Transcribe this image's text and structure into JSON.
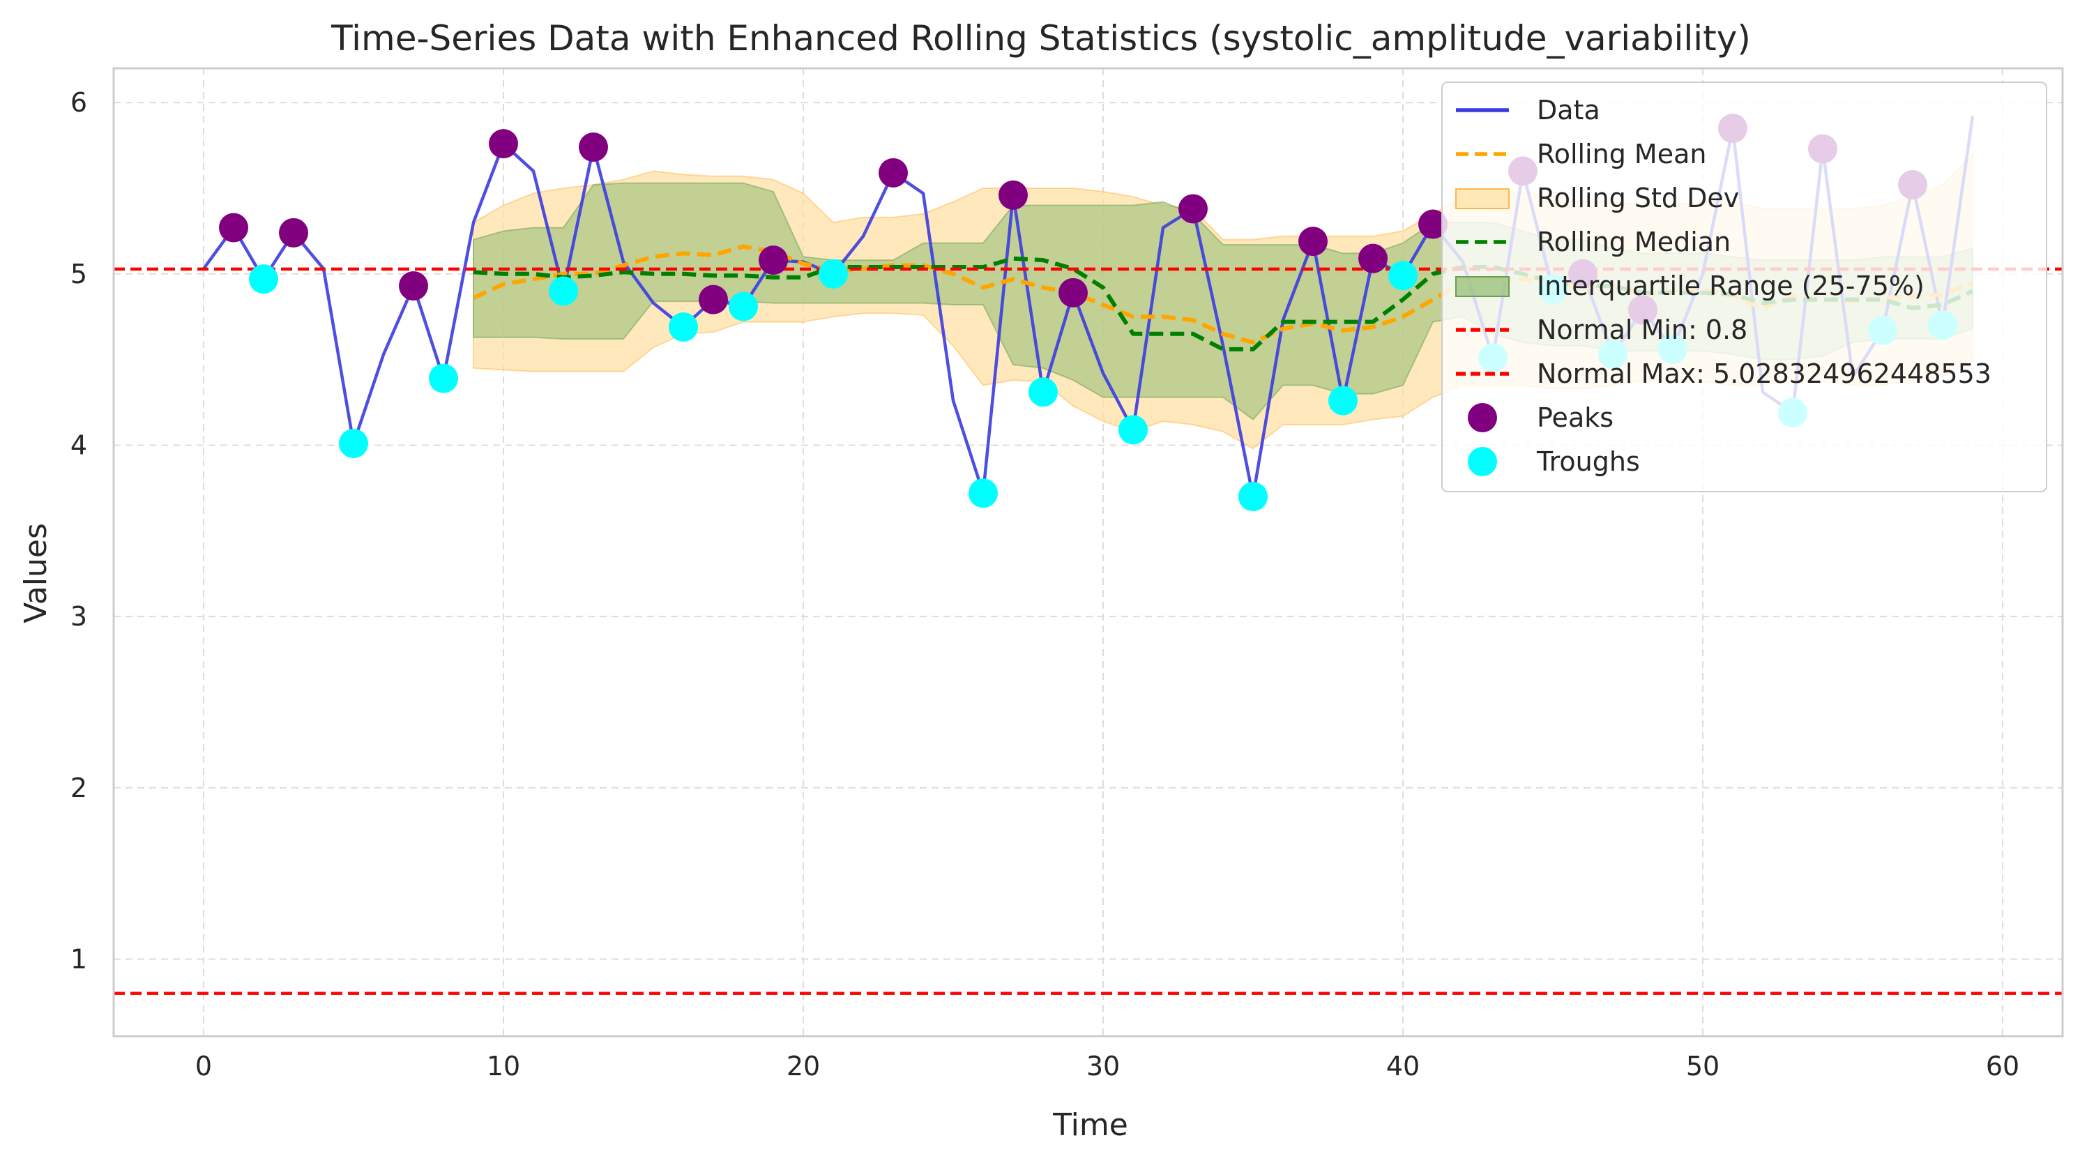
{
  "chart_data": {
    "type": "line",
    "title": "Time-Series Data with Enhanced Rolling Statistics (systolic_amplitude_variability)",
    "xlabel": "Time",
    "ylabel": "Values",
    "xlim": [
      -3,
      62
    ],
    "ylim": [
      0.55,
      6.2
    ],
    "x_ticks": [
      0,
      10,
      20,
      30,
      40,
      50,
      60
    ],
    "y_ticks": [
      1,
      2,
      3,
      4,
      5,
      6
    ],
    "grid": true,
    "legend_position": "top-right",
    "colors": {
      "data": "#3b3be0",
      "rolling_mean": "#ffa500",
      "rolling_std": "#ffdfa0",
      "rolling_median": "#008000",
      "iqr": "#8fbc72",
      "normal": "#ff0000",
      "peaks": "#800080",
      "troughs": "#00ffff"
    },
    "x": [
      0,
      1,
      2,
      3,
      4,
      5,
      6,
      7,
      8,
      9,
      10,
      11,
      12,
      13,
      14,
      15,
      16,
      17,
      18,
      19,
      20,
      21,
      22,
      23,
      24,
      25,
      26,
      27,
      28,
      29,
      30,
      31,
      32,
      33,
      34,
      35,
      36,
      37,
      38,
      39,
      40,
      41,
      42,
      43,
      44,
      45,
      46,
      47,
      48,
      49,
      50,
      51,
      52,
      53,
      54,
      55,
      56,
      57,
      58,
      59
    ],
    "series": [
      {
        "name": "Data",
        "values": [
          5.03,
          5.27,
          4.97,
          5.24,
          5.03,
          4.01,
          4.53,
          4.93,
          4.39,
          5.3,
          5.76,
          5.6,
          4.9,
          5.74,
          5.07,
          4.83,
          4.69,
          4.85,
          4.81,
          5.08,
          5.07,
          5.0,
          5.22,
          5.59,
          5.47,
          4.26,
          3.72,
          5.46,
          4.31,
          4.89,
          4.42,
          4.09,
          5.27,
          5.38,
          4.58,
          3.7,
          4.73,
          5.19,
          4.26,
          5.09,
          4.99,
          5.29,
          5.07,
          4.51,
          5.6,
          4.91,
          5.0,
          4.53,
          4.79,
          4.56,
          5.0,
          5.85,
          4.31,
          4.19,
          5.73,
          4.4,
          4.67,
          5.52,
          4.7,
          5.92
        ]
      },
      {
        "name": "Rolling Mean",
        "x": [
          9,
          10,
          11,
          12,
          13,
          14,
          15,
          16,
          17,
          18,
          19,
          20,
          21,
          22,
          23,
          24,
          25,
          26,
          27,
          28,
          29,
          30,
          31,
          32,
          33,
          34,
          35,
          36,
          37,
          38,
          39,
          40,
          41,
          42,
          43,
          44,
          45,
          46,
          47,
          48,
          49,
          50,
          51,
          52,
          53,
          54,
          55,
          56,
          57,
          58,
          59
        ],
        "values": [
          4.86,
          4.94,
          4.97,
          5.0,
          5.0,
          5.05,
          5.1,
          5.12,
          5.11,
          5.16,
          5.13,
          5.06,
          5.02,
          5.03,
          5.05,
          5.05,
          5.0,
          4.92,
          4.97,
          4.92,
          4.89,
          4.82,
          4.75,
          4.75,
          4.73,
          4.65,
          4.6,
          4.68,
          4.71,
          4.67,
          4.69,
          4.75,
          4.85,
          4.95,
          4.96,
          4.97,
          4.96,
          4.92,
          4.93,
          4.88,
          4.9,
          4.91,
          4.87,
          4.8,
          4.87,
          4.85,
          4.84,
          4.86,
          4.87,
          4.88,
          4.95
        ]
      },
      {
        "name": "Rolling Median",
        "x": [
          9,
          10,
          11,
          12,
          13,
          14,
          15,
          16,
          17,
          18,
          19,
          20,
          21,
          22,
          23,
          24,
          25,
          26,
          27,
          28,
          29,
          30,
          31,
          32,
          33,
          34,
          35,
          36,
          37,
          38,
          39,
          40,
          41,
          42,
          43,
          44,
          45,
          46,
          47,
          48,
          49,
          50,
          51,
          52,
          53,
          54,
          55,
          56,
          57,
          58,
          59
        ],
        "values": [
          5.01,
          5.0,
          5.0,
          4.98,
          4.99,
          5.01,
          5.0,
          5.0,
          4.99,
          4.99,
          4.98,
          4.98,
          5.04,
          5.04,
          5.04,
          5.04,
          5.04,
          5.04,
          5.09,
          5.08,
          5.03,
          4.92,
          4.65,
          4.65,
          4.65,
          4.56,
          4.56,
          4.72,
          4.72,
          4.72,
          4.72,
          4.85,
          5.0,
          5.04,
          5.04,
          5.0,
          4.95,
          4.93,
          4.93,
          4.89,
          4.89,
          4.89,
          4.88,
          4.83,
          4.85,
          4.85,
          4.85,
          4.85,
          4.8,
          4.82,
          4.9
        ]
      }
    ],
    "bands": [
      {
        "name": "Rolling Std Dev",
        "x": [
          9,
          10,
          11,
          12,
          13,
          14,
          15,
          16,
          17,
          18,
          19,
          20,
          21,
          22,
          23,
          24,
          25,
          26,
          27,
          28,
          29,
          30,
          31,
          32,
          33,
          34,
          35,
          36,
          37,
          38,
          39,
          40,
          41,
          42,
          43,
          44,
          45,
          46,
          47,
          48,
          49,
          50,
          51,
          52,
          53,
          54,
          55,
          56,
          57,
          58,
          59
        ],
        "lower": [
          4.45,
          4.44,
          4.43,
          4.43,
          4.43,
          4.43,
          4.57,
          4.65,
          4.66,
          4.72,
          4.72,
          4.72,
          4.75,
          4.77,
          4.77,
          4.76,
          4.58,
          4.35,
          4.38,
          4.37,
          4.23,
          4.14,
          4.08,
          4.14,
          4.12,
          4.08,
          3.98,
          4.12,
          4.12,
          4.12,
          4.15,
          4.17,
          4.28,
          4.35,
          4.35,
          4.35,
          4.33,
          4.33,
          4.35,
          4.38,
          4.37,
          4.37,
          4.35,
          4.35,
          4.38,
          4.37,
          4.35,
          4.35,
          4.38,
          4.4,
          4.5
        ],
        "upper": [
          5.3,
          5.4,
          5.47,
          5.5,
          5.52,
          5.55,
          5.6,
          5.58,
          5.57,
          5.57,
          5.55,
          5.47,
          5.3,
          5.33,
          5.33,
          5.35,
          5.42,
          5.5,
          5.5,
          5.5,
          5.5,
          5.48,
          5.45,
          5.4,
          5.38,
          5.2,
          5.2,
          5.22,
          5.22,
          5.22,
          5.22,
          5.25,
          5.35,
          5.45,
          5.48,
          5.48,
          5.45,
          5.42,
          5.42,
          5.4,
          5.4,
          5.42,
          5.42,
          5.38,
          5.38,
          5.38,
          5.38,
          5.4,
          5.45,
          5.52,
          5.7
        ]
      },
      {
        "name": "Interquartile Range (25-75%)",
        "x": [
          9,
          10,
          11,
          12,
          13,
          14,
          15,
          16,
          17,
          18,
          19,
          20,
          21,
          22,
          23,
          24,
          25,
          26,
          27,
          28,
          29,
          30,
          31,
          32,
          33,
          34,
          35,
          36,
          37,
          38,
          39,
          40,
          41,
          42,
          43,
          44,
          45,
          46,
          47,
          48,
          49,
          50,
          51,
          52,
          53,
          54,
          55,
          56,
          57,
          58,
          59
        ],
        "lower": [
          4.63,
          4.63,
          4.63,
          4.62,
          4.62,
          4.62,
          4.84,
          4.84,
          4.84,
          4.84,
          4.83,
          4.83,
          4.83,
          4.83,
          4.83,
          4.83,
          4.82,
          4.82,
          4.47,
          4.45,
          4.38,
          4.28,
          4.28,
          4.28,
          4.28,
          4.28,
          4.15,
          4.35,
          4.35,
          4.3,
          4.3,
          4.35,
          4.72,
          4.75,
          4.65,
          4.6,
          4.58,
          4.58,
          4.55,
          4.55,
          4.55,
          4.55,
          4.53,
          4.5,
          4.5,
          4.52,
          4.6,
          4.62,
          4.62,
          4.62,
          4.68
        ],
        "upper": [
          5.2,
          5.25,
          5.27,
          5.27,
          5.52,
          5.53,
          5.53,
          5.53,
          5.53,
          5.53,
          5.48,
          5.1,
          5.08,
          5.08,
          5.08,
          5.18,
          5.18,
          5.18,
          5.4,
          5.4,
          5.4,
          5.4,
          5.4,
          5.42,
          5.35,
          5.17,
          5.17,
          5.17,
          5.17,
          5.12,
          5.12,
          5.18,
          5.3,
          5.3,
          5.3,
          5.25,
          5.2,
          5.2,
          5.15,
          5.12,
          5.12,
          5.12,
          5.1,
          5.08,
          5.08,
          5.08,
          5.08,
          5.1,
          5.1,
          5.1,
          5.15
        ]
      }
    ],
    "hlines": [
      {
        "name": "Normal Min: 0.8",
        "value": 0.8
      },
      {
        "name": "Normal Max: 5.028324962448553",
        "value": 5.028324962448553
      }
    ],
    "peaks": {
      "name": "Peaks",
      "x": [
        1,
        3,
        7,
        10,
        13,
        17,
        19,
        23,
        27,
        29,
        33,
        37,
        39,
        41,
        44,
        46,
        48,
        51,
        54,
        57
      ],
      "y": [
        5.27,
        5.24,
        4.93,
        5.76,
        5.74,
        4.85,
        5.08,
        5.59,
        5.46,
        4.89,
        5.38,
        5.19,
        5.09,
        5.29,
        5.6,
        5.0,
        4.79,
        5.85,
        5.73,
        5.52
      ]
    },
    "troughs": {
      "name": "Troughs",
      "x": [
        2,
        5,
        8,
        12,
        16,
        18,
        21,
        26,
        28,
        31,
        35,
        38,
        40,
        43,
        45,
        47,
        49,
        53,
        56,
        58
      ],
      "y": [
        4.97,
        4.01,
        4.39,
        4.9,
        4.69,
        4.81,
        5.0,
        3.72,
        4.31,
        4.09,
        3.7,
        4.26,
        4.99,
        4.51,
        4.91,
        4.53,
        4.56,
        4.19,
        4.67,
        4.7
      ]
    },
    "legend": [
      "Data",
      "Rolling Mean",
      "Rolling Std Dev",
      "Rolling Median",
      "Interquartile Range (25-75%)",
      "Normal Min: 0.8",
      "Normal Max: 5.028324962448553",
      "Peaks",
      "Troughs"
    ]
  }
}
